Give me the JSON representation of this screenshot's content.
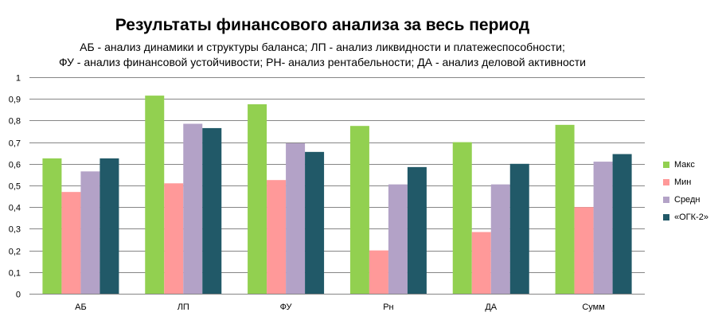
{
  "chart_data": {
    "type": "bar",
    "title": "Результаты финансового анализа за весь период",
    "subtitle_line1": "АБ - анализ динамики и структуры баланса;  ЛП - анализ ликвидности и платежеспособности;",
    "subtitle_line2": "ФУ - анализ финансовой устойчивости; РН- анализ рентабельности; ДА - анализ деловой активности",
    "categories": [
      "АБ",
      "ЛП",
      "ФУ",
      "Рн",
      "ДА",
      "Сумм"
    ],
    "series": [
      {
        "name": "Макс",
        "color": "#92d050",
        "values": [
          0.625,
          0.915,
          0.875,
          0.775,
          0.7,
          0.78
        ]
      },
      {
        "name": "Мин",
        "color": "#ff9999",
        "values": [
          0.47,
          0.51,
          0.525,
          0.2,
          0.285,
          0.4
        ]
      },
      {
        "name": "Средн",
        "color": "#b3a2c7",
        "values": [
          0.565,
          0.785,
          0.695,
          0.505,
          0.505,
          0.61
        ]
      },
      {
        "name": "«ОГК-2»",
        "color": "#215968",
        "values": [
          0.625,
          0.765,
          0.655,
          0.585,
          0.6,
          0.645
        ]
      }
    ],
    "ylim": [
      0,
      1
    ],
    "yticks": [
      "0",
      "0,1",
      "0,2",
      "0,3",
      "0,4",
      "0,5",
      "0,6",
      "0,7",
      "0,8",
      "0,9",
      "1"
    ],
    "xlabel": "",
    "ylabel": "",
    "grid": true,
    "legend_position": "right"
  }
}
